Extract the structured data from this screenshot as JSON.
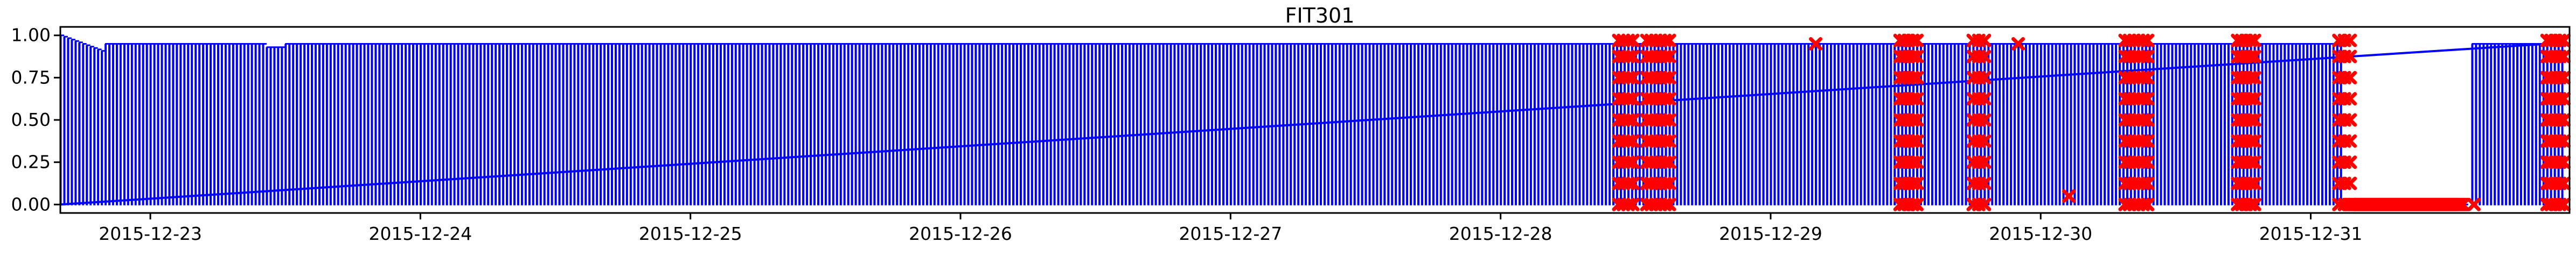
{
  "chart_data": {
    "type": "line",
    "title": "FIT301",
    "xlabel": "",
    "ylabel": "",
    "xlim": [
      "2015-12-22 16:00",
      "2015-12-31 23:00"
    ],
    "ylim": [
      -0.05,
      1.05
    ],
    "x_ticks": [
      "2015-12-23",
      "2015-12-24",
      "2015-12-25",
      "2015-12-26",
      "2015-12-27",
      "2015-12-28",
      "2015-12-29",
      "2015-12-30",
      "2015-12-31"
    ],
    "y_ticks": [
      "0.00",
      "0.25",
      "0.50",
      "0.75",
      "1.00"
    ],
    "grid": false,
    "series": [
      {
        "color": "#0000ff",
        "shape": "periodic square wave alternating between ~0.95 and ~0.0, with a straight line from 0.0 at 2015-12-22 16:00 to ~0.95 at 2015-12-31 21:00",
        "high_level": 0.95,
        "low_level": 0.0,
        "gaps": [
          [
            "2015-12-31 03:00",
            "2015-12-31 14:00"
          ]
        ]
      },
      {
        "color": "#ff0000",
        "marker": "x",
        "anomaly_windows": [
          [
            "2015-12-28 10:30",
            "2015-12-28 11:45"
          ],
          [
            "2015-12-28 13:00",
            "2015-12-28 15:00"
          ],
          [
            "2015-12-29 11:30",
            "2015-12-29 13:00"
          ],
          [
            "2015-12-29 18:00",
            "2015-12-29 19:00"
          ],
          [
            "2015-12-30 07:30",
            "2015-12-30 09:30"
          ],
          [
            "2015-12-30 17:30",
            "2015-12-30 19:00"
          ],
          [
            "2015-12-31 02:30",
            "2015-12-31 03:30"
          ],
          [
            "2015-12-31 21:00",
            "2015-12-31 22:30"
          ]
        ],
        "flat_low_window": [
          "2015-12-31 03:30",
          "2015-12-31 13:30"
        ],
        "isolated_points": [
          {
            "x": "2015-12-29 04:00",
            "y": 0.95
          },
          {
            "x": "2015-12-29 22:00",
            "y": 0.95
          },
          {
            "x": "2015-12-30 02:30",
            "y": 0.05
          },
          {
            "x": "2015-12-31 14:30",
            "y": 0.0
          }
        ]
      }
    ]
  }
}
